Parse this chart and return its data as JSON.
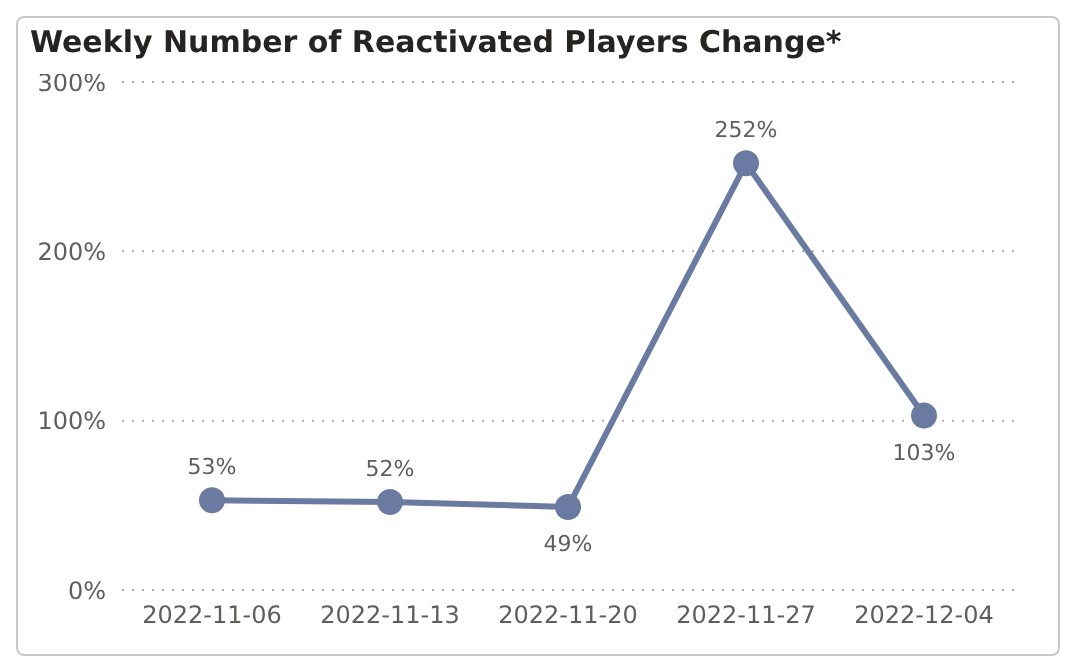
{
  "chart_data": {
    "type": "line",
    "title": "Weekly Number of Reactivated Players Change*",
    "categories": [
      "2022-11-06",
      "2022-11-13",
      "2022-11-20",
      "2022-11-27",
      "2022-12-04"
    ],
    "series": [
      {
        "color": "#6b7aa1",
        "values": [
          53,
          52,
          49,
          252,
          103
        ],
        "value_labels": [
          "53%",
          "52%",
          "49%",
          "252%",
          "103%"
        ]
      }
    ],
    "ylim": [
      0,
      300
    ],
    "yticks": [
      {
        "value": 0,
        "label": "0%"
      },
      {
        "value": 100,
        "label": "100%"
      },
      {
        "value": 200,
        "label": "200%"
      },
      {
        "value": 300,
        "label": "300%"
      }
    ],
    "grid": "y",
    "legend": false,
    "marker": "circle",
    "line_style": "solid"
  }
}
